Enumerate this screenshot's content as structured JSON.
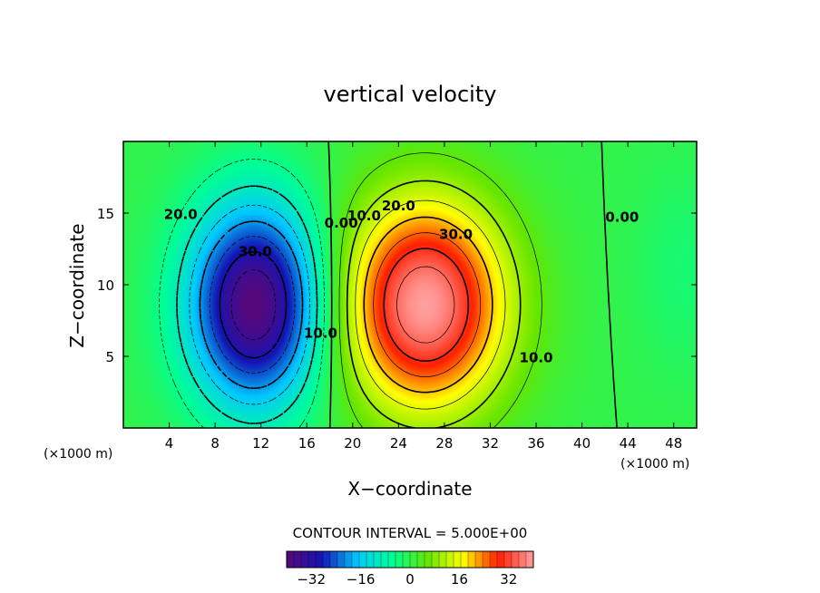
{
  "chart_data": {
    "type": "contour",
    "title": "vertical velocity",
    "xlabel": "X−coordinate",
    "ylabel": "Z−coordinate",
    "x_unit_label": "(×1000 m)",
    "y_unit_label": "(×1000 m)",
    "xlim": [
      0,
      50
    ],
    "ylim": [
      0,
      20
    ],
    "x_ticks": [
      4,
      8,
      12,
      16,
      20,
      24,
      28,
      32,
      36,
      40,
      44,
      48
    ],
    "y_ticks": [
      5,
      10,
      15
    ],
    "x_tick_labels": [
      "4",
      "8",
      "12",
      "16",
      "20",
      "24",
      "28",
      "32",
      "36",
      "40",
      "44",
      "48"
    ],
    "y_tick_labels": [
      "5",
      "10",
      "15"
    ],
    "contour_interval_text": "CONTOUR INTERVAL = 5.000E+00",
    "contour_interval": 5,
    "contour_levels": [
      -35,
      -30,
      -25,
      -20,
      -15,
      -10,
      -5,
      0,
      5,
      10,
      15,
      20,
      25,
      30,
      35
    ],
    "contour_labels": [
      {
        "text": "20.0",
        "x": 5.0,
        "z": 14.6
      },
      {
        "text": "30.0",
        "x": 11.5,
        "z": 12.0
      },
      {
        "text": "10.0",
        "x": 17.2,
        "z": 6.3
      },
      {
        "text": "0.00",
        "x": 19.0,
        "z": 14.0
      },
      {
        "text": "10.0",
        "x": 21.0,
        "z": 14.5
      },
      {
        "text": "20.0",
        "x": 24.0,
        "z": 15.2
      },
      {
        "text": "30.0",
        "x": 29.0,
        "z": 13.2
      },
      {
        "text": "10.0",
        "x": 36.0,
        "z": 4.6
      },
      {
        "text": "0.00",
        "x": 43.5,
        "z": 14.4
      }
    ],
    "features": [
      {
        "type": "min",
        "x": 11.6,
        "z": 8.6,
        "value": -38
      },
      {
        "type": "max",
        "x": 26.3,
        "z": 8.4,
        "value": 38
      }
    ],
    "colorbar": {
      "range": [
        -40,
        40
      ],
      "tick_values": [
        -32,
        -16,
        0,
        16,
        32
      ],
      "tick_labels": [
        "−32",
        "−16",
        "0",
        "16",
        "32"
      ],
      "colors": [
        "#5a0878",
        "#1414b4",
        "#00c8ff",
        "#00ff96",
        "#64e600",
        "#ffff00",
        "#ff1e00",
        "#ffa0a0"
      ]
    }
  }
}
